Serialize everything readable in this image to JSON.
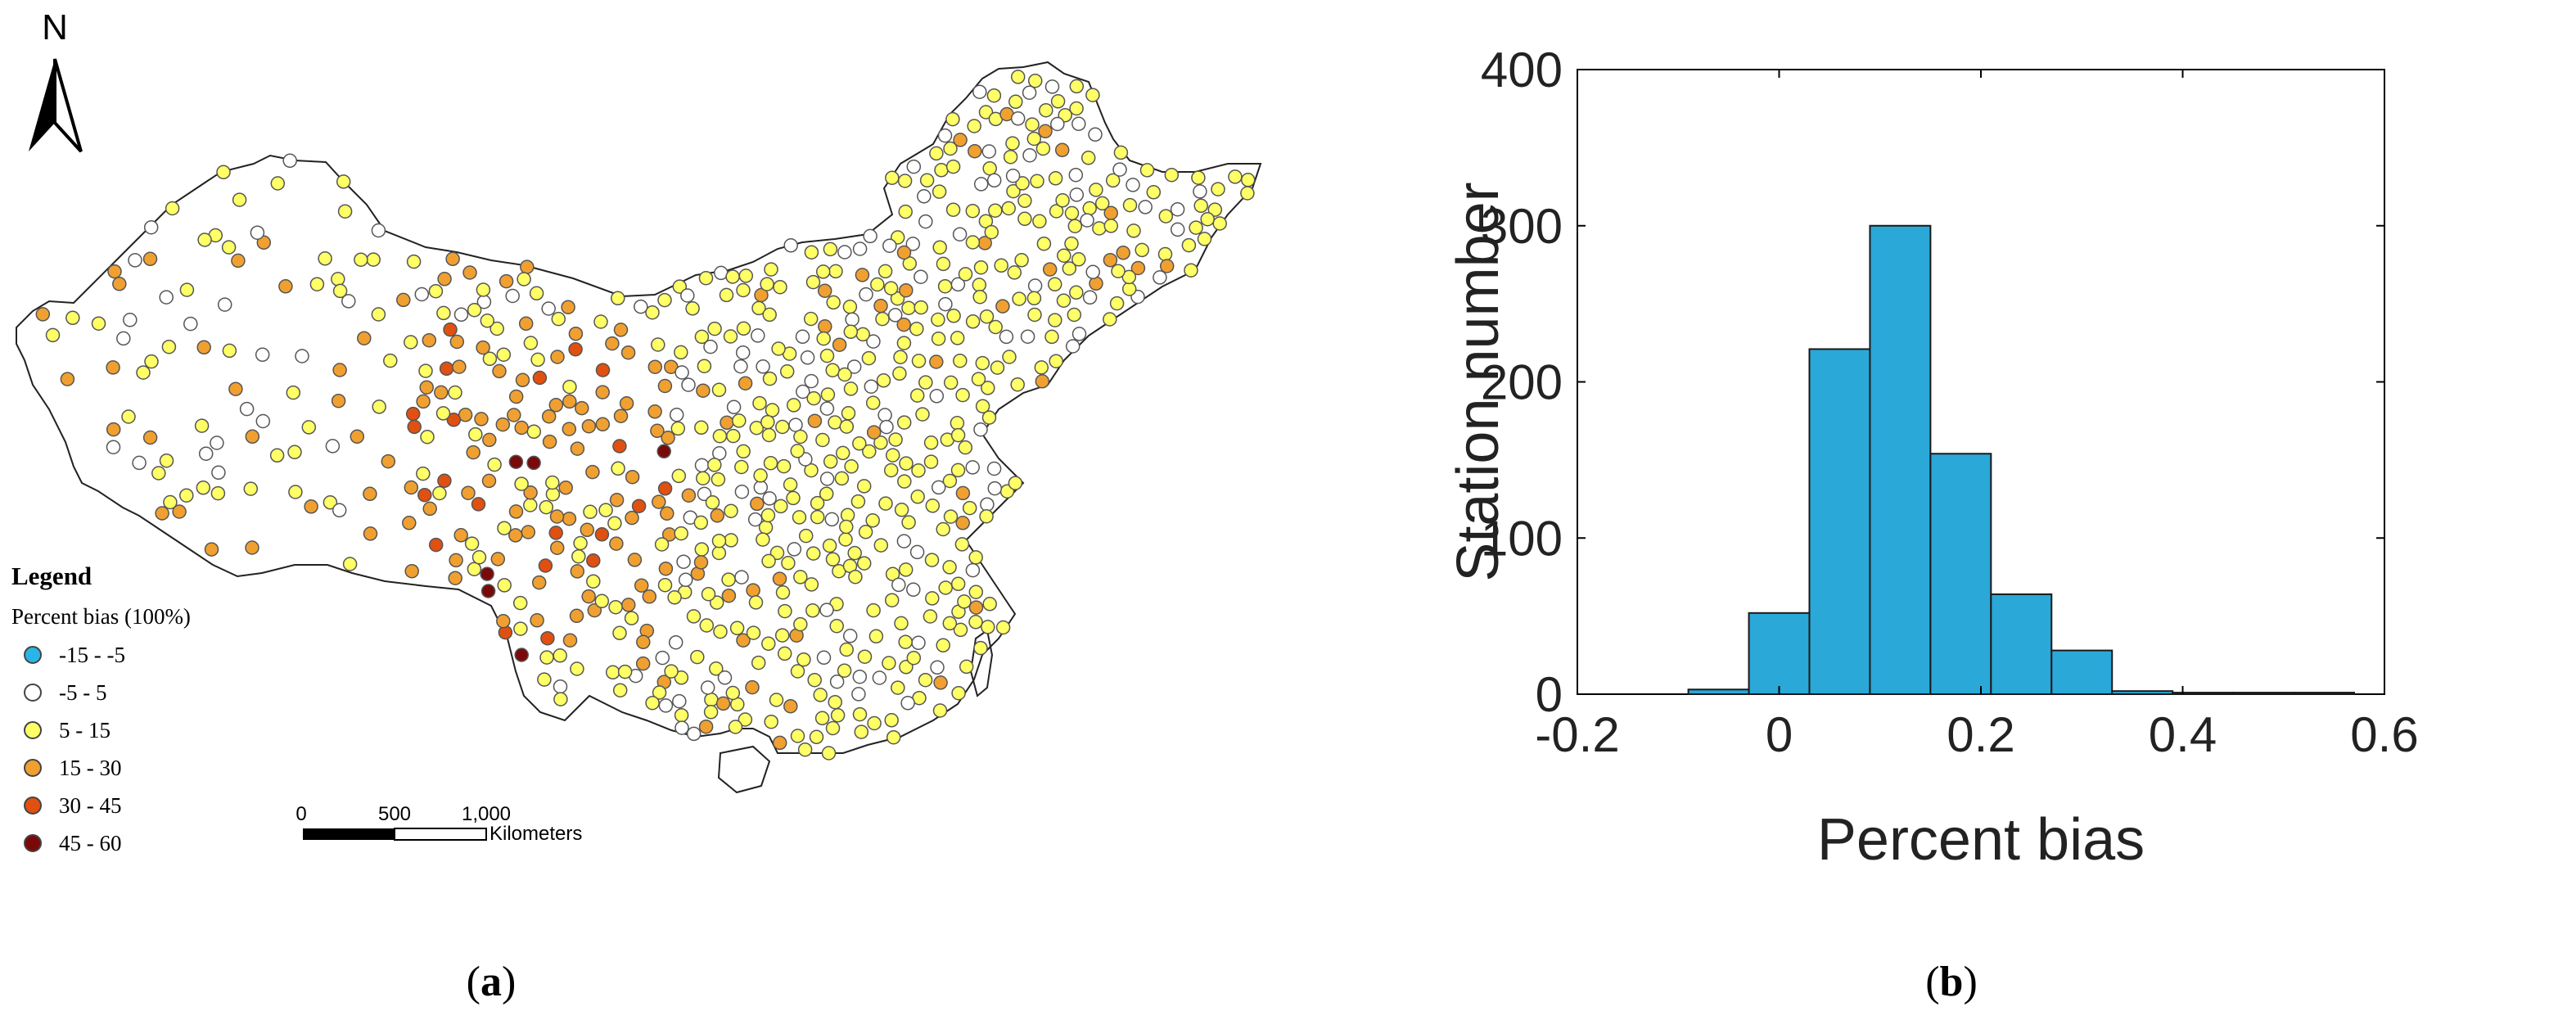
{
  "panel_a": {
    "label_open": "(",
    "label_letter": "a",
    "label_close": ")",
    "north_label": "N",
    "legend_title": "Legend",
    "legend_subtitle": "Percent bias (100%)",
    "legend_items": [
      {
        "label": "-15 - -5",
        "color": "#29b6e6"
      },
      {
        "label": "-5 - 5",
        "color": "#ffffff"
      },
      {
        "label": "5 - 15",
        "color": "#ffff66"
      },
      {
        "label": "15 - 30",
        "color": "#f0a030"
      },
      {
        "label": "30 - 45",
        "color": "#e05010"
      },
      {
        "label": "45 - 60",
        "color": "#7a0a0a"
      }
    ],
    "scale_ticks": [
      "0",
      "500",
      "1,000"
    ],
    "scale_unit": "Kilometers"
  },
  "panel_b": {
    "label_open": "(",
    "label_letter": "b",
    "label_close": ")"
  },
  "chart_data": {
    "type": "bar",
    "xlabel": "Percent bias",
    "ylabel": "Station number",
    "xlim": [
      -0.2,
      0.6
    ],
    "ylim": [
      0,
      400
    ],
    "xticks": [
      "-0.2",
      "0",
      "0.2",
      "0.4",
      "0.6"
    ],
    "yticks": [
      "0",
      "100",
      "200",
      "300",
      "400"
    ],
    "bar_color": "#2aa8d8",
    "bins": [
      {
        "x0": -0.09,
        "x1": -0.03,
        "value": 3
      },
      {
        "x0": -0.03,
        "x1": 0.03,
        "value": 52
      },
      {
        "x0": 0.03,
        "x1": 0.09,
        "value": 221
      },
      {
        "x0": 0.09,
        "x1": 0.15,
        "value": 300
      },
      {
        "x0": 0.15,
        "x1": 0.21,
        "value": 154
      },
      {
        "x0": 0.21,
        "x1": 0.27,
        "value": 64
      },
      {
        "x0": 0.27,
        "x1": 0.33,
        "value": 28
      },
      {
        "x0": 0.33,
        "x1": 0.39,
        "value": 2
      },
      {
        "x0": 0.39,
        "x1": 0.45,
        "value": 1
      },
      {
        "x0": 0.45,
        "x1": 0.51,
        "value": 1
      },
      {
        "x0": 0.51,
        "x1": 0.57,
        "value": 1
      }
    ]
  }
}
